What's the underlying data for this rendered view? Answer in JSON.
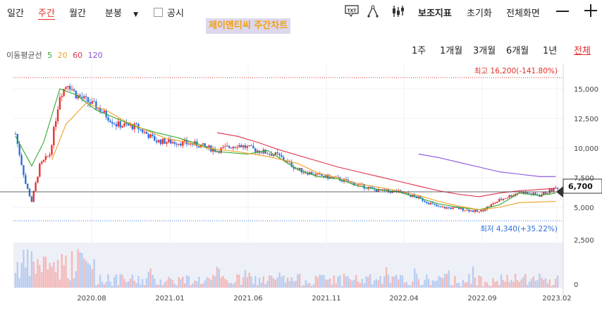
{
  "toolbar": {
    "tabs": [
      {
        "label": "일간",
        "active": false
      },
      {
        "label": "주간",
        "active": true
      },
      {
        "label": "월간",
        "active": false
      },
      {
        "label": "분봉",
        "active": false
      }
    ],
    "disclosure_label": "공시",
    "tools": {
      "sub_indicator": "보조지표",
      "reset": "초기화",
      "fullscreen": "전체화면"
    },
    "icons": [
      "txt-icon",
      "drawing-icon",
      "candle-icon",
      "minus-icon",
      "plus-icon"
    ]
  },
  "chart_title": "제이앤티씨 주간차트",
  "ma_legend": {
    "label": "이동평균선",
    "periods": [
      {
        "value": "5",
        "color": "#2eaa2e"
      },
      {
        "value": "20",
        "color": "#f0a020"
      },
      {
        "value": "60",
        "color": "#e0304a"
      },
      {
        "value": "120",
        "color": "#8a4fe0"
      }
    ]
  },
  "periods": [
    {
      "label": "1주",
      "active": false
    },
    {
      "label": "1개월",
      "active": false
    },
    {
      "label": "3개월",
      "active": false
    },
    {
      "label": "6개월",
      "active": false
    },
    {
      "label": "1년",
      "active": false
    },
    {
      "label": "전체",
      "active": true
    }
  ],
  "colors": {
    "up": "#e8312f",
    "down": "#2f6fd8",
    "ma5": "#2eaa2e",
    "ma20": "#f0a020",
    "ma60": "#e0304a",
    "ma120": "#8a4fe0"
  },
  "chart_data": {
    "type": "candlestick",
    "period": "weekly",
    "y_ticks": [
      "15,000",
      "12,500",
      "10,000",
      "7,500",
      "5,000",
      "2,500",
      "0"
    ],
    "y_range": [
      2500,
      16500
    ],
    "x_ticks": [
      "2020.08",
      "2021.01",
      "2021.06",
      "2021.11",
      "2022.04",
      "2022.09",
      "2023.02"
    ],
    "high": {
      "label": "최고",
      "value": 16200,
      "text": "최고 16,200(-141.80%)"
    },
    "low": {
      "label": "최저",
      "value": 4340,
      "text": "최저 4,340(+35.22%)"
    },
    "current": {
      "value": 6700,
      "label": "6,700"
    },
    "ma_paths": {
      "ma5": [
        [
          0,
          11000
        ],
        [
          8,
          8500
        ],
        [
          14,
          10500
        ],
        [
          22,
          15000
        ],
        [
          30,
          14500
        ],
        [
          40,
          13200
        ],
        [
          50,
          12500
        ],
        [
          60,
          11800
        ],
        [
          70,
          11300
        ],
        [
          80,
          10900
        ],
        [
          90,
          10400
        ],
        [
          100,
          9700
        ],
        [
          115,
          9500
        ],
        [
          125,
          9800
        ],
        [
          140,
          8200
        ],
        [
          150,
          7600
        ],
        [
          160,
          7400
        ],
        [
          170,
          6800
        ],
        [
          180,
          6500
        ],
        [
          190,
          6300
        ],
        [
          200,
          5800
        ],
        [
          210,
          5300
        ],
        [
          220,
          5000
        ],
        [
          230,
          4800
        ],
        [
          240,
          5200
        ],
        [
          250,
          6200
        ],
        [
          260,
          6000
        ],
        [
          268,
          6200
        ]
      ],
      "ma20": [
        [
          18,
          9000
        ],
        [
          25,
          12000
        ],
        [
          35,
          13800
        ],
        [
          45,
          13200
        ],
        [
          55,
          12200
        ],
        [
          65,
          11500
        ],
        [
          75,
          10800
        ],
        [
          85,
          10500
        ],
        [
          95,
          10000
        ],
        [
          110,
          9700
        ],
        [
          125,
          9300
        ],
        [
          140,
          8700
        ],
        [
          150,
          7900
        ],
        [
          160,
          7500
        ],
        [
          170,
          7000
        ],
        [
          180,
          6700
        ],
        [
          190,
          6400
        ],
        [
          200,
          6000
        ],
        [
          210,
          5500
        ],
        [
          220,
          5100
        ],
        [
          230,
          4800
        ],
        [
          240,
          5000
        ],
        [
          250,
          5400
        ],
        [
          268,
          5500
        ]
      ],
      "ma60": [
        [
          100,
          11300
        ],
        [
          110,
          11000
        ],
        [
          120,
          10500
        ],
        [
          130,
          9900
        ],
        [
          140,
          9400
        ],
        [
          150,
          8900
        ],
        [
          160,
          8400
        ],
        [
          170,
          8000
        ],
        [
          180,
          7600
        ],
        [
          190,
          7200
        ],
        [
          200,
          6800
        ],
        [
          210,
          6400
        ],
        [
          220,
          6100
        ],
        [
          230,
          5900
        ],
        [
          240,
          6200
        ],
        [
          250,
          6400
        ],
        [
          268,
          6600
        ]
      ],
      "ma120": [
        [
          200,
          9500
        ],
        [
          210,
          9200
        ],
        [
          220,
          8800
        ],
        [
          230,
          8400
        ],
        [
          240,
          8000
        ],
        [
          250,
          7800
        ],
        [
          260,
          7600
        ],
        [
          268,
          7600
        ]
      ]
    }
  }
}
